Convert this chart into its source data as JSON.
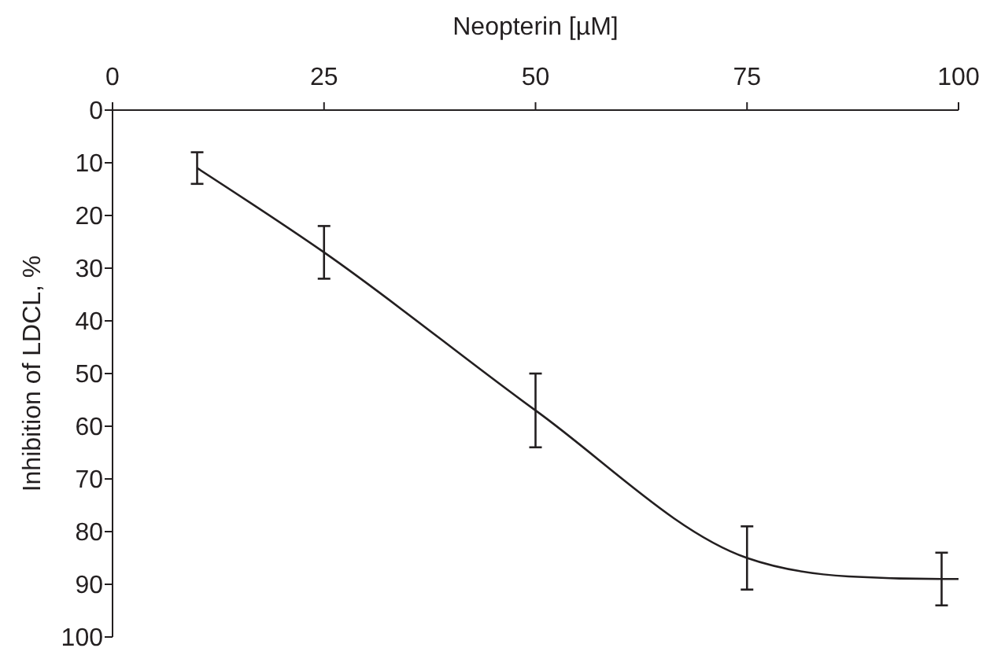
{
  "chart_data": {
    "type": "line",
    "xlabel": "Neopterin [µM]",
    "ylabel": "Inhibition of LDCL, %",
    "xlim": [
      0,
      100
    ],
    "xticks": [
      0,
      25,
      50,
      75,
      100
    ],
    "ylim": [
      100,
      0
    ],
    "yticks": [
      0,
      10,
      20,
      30,
      40,
      50,
      60,
      70,
      80,
      90,
      100
    ],
    "grid": false,
    "marker": "none",
    "line_style": "solid",
    "series": [
      {
        "color": "#231f20",
        "x": [
          10,
          25,
          50,
          75,
          87,
          98,
          100
        ],
        "values": [
          11,
          27,
          57,
          85,
          88.5,
          89,
          89
        ],
        "errors": [
          3,
          5,
          7,
          6,
          null,
          5,
          null
        ]
      }
    ]
  }
}
